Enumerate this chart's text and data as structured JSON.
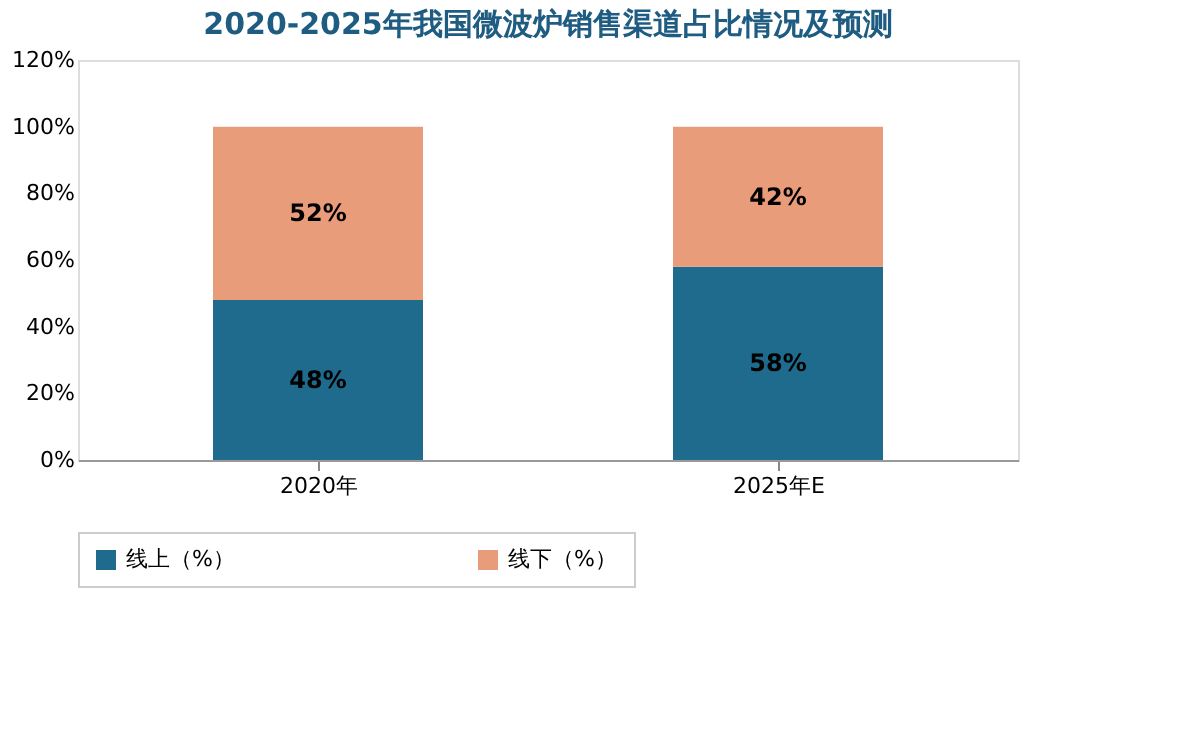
{
  "chart_data": {
    "type": "bar",
    "title": "2020-2025年我国微波炉销售渠道占比情况及预测",
    "categories": [
      "2020年",
      "2025年E"
    ],
    "stacked": true,
    "series": [
      {
        "name": "线上（%）",
        "color": "#1f6b8e",
        "values": [
          48,
          58
        ],
        "value_labels": [
          "48%",
          "58%"
        ]
      },
      {
        "name": "线下（%）",
        "color": "#e89c7a",
        "values": [
          52,
          42
        ],
        "value_labels": [
          "52%",
          "42%"
        ]
      }
    ],
    "ylim": [
      0,
      120
    ],
    "yticks": [
      {
        "value": 0,
        "label": "0%"
      },
      {
        "value": 20,
        "label": "20%"
      },
      {
        "value": 40,
        "label": "40%"
      },
      {
        "value": 60,
        "label": "60%"
      },
      {
        "value": 80,
        "label": "80%"
      },
      {
        "value": 100,
        "label": "100%"
      },
      {
        "value": 120,
        "label": "120%"
      }
    ],
    "grid": false,
    "legend": "bottom"
  }
}
